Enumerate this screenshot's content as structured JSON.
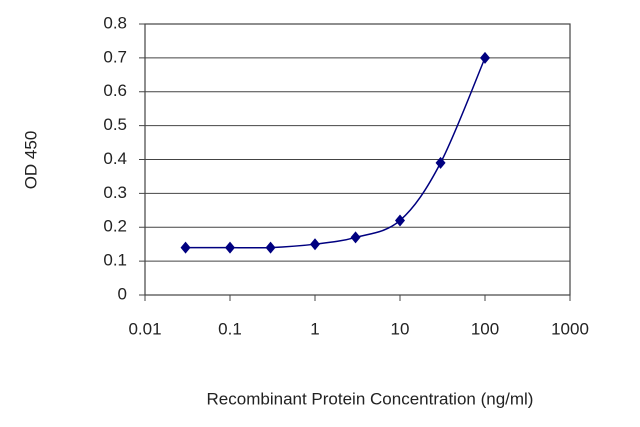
{
  "chart_data": {
    "type": "line",
    "x_label": "Recombinant Protein Concentration (ng/ml)",
    "y_label": "OD 450",
    "xscale": "log",
    "grid": true,
    "series": [
      {
        "color": "#000080",
        "x": [
          0.03,
          0.1,
          0.3,
          1,
          3,
          10,
          30,
          100
        ],
        "values": [
          0.14,
          0.14,
          0.14,
          0.15,
          0.17,
          0.22,
          0.39,
          0.7
        ]
      }
    ],
    "xlim": [
      0.01,
      1000
    ],
    "xticks": [
      0.01,
      0.1,
      1,
      10,
      100,
      1000
    ],
    "ylim": [
      0,
      0.8
    ],
    "yticks": [
      0,
      0.1,
      0.2,
      0.3,
      0.4,
      0.5,
      0.6,
      0.7,
      0.8
    ]
  }
}
